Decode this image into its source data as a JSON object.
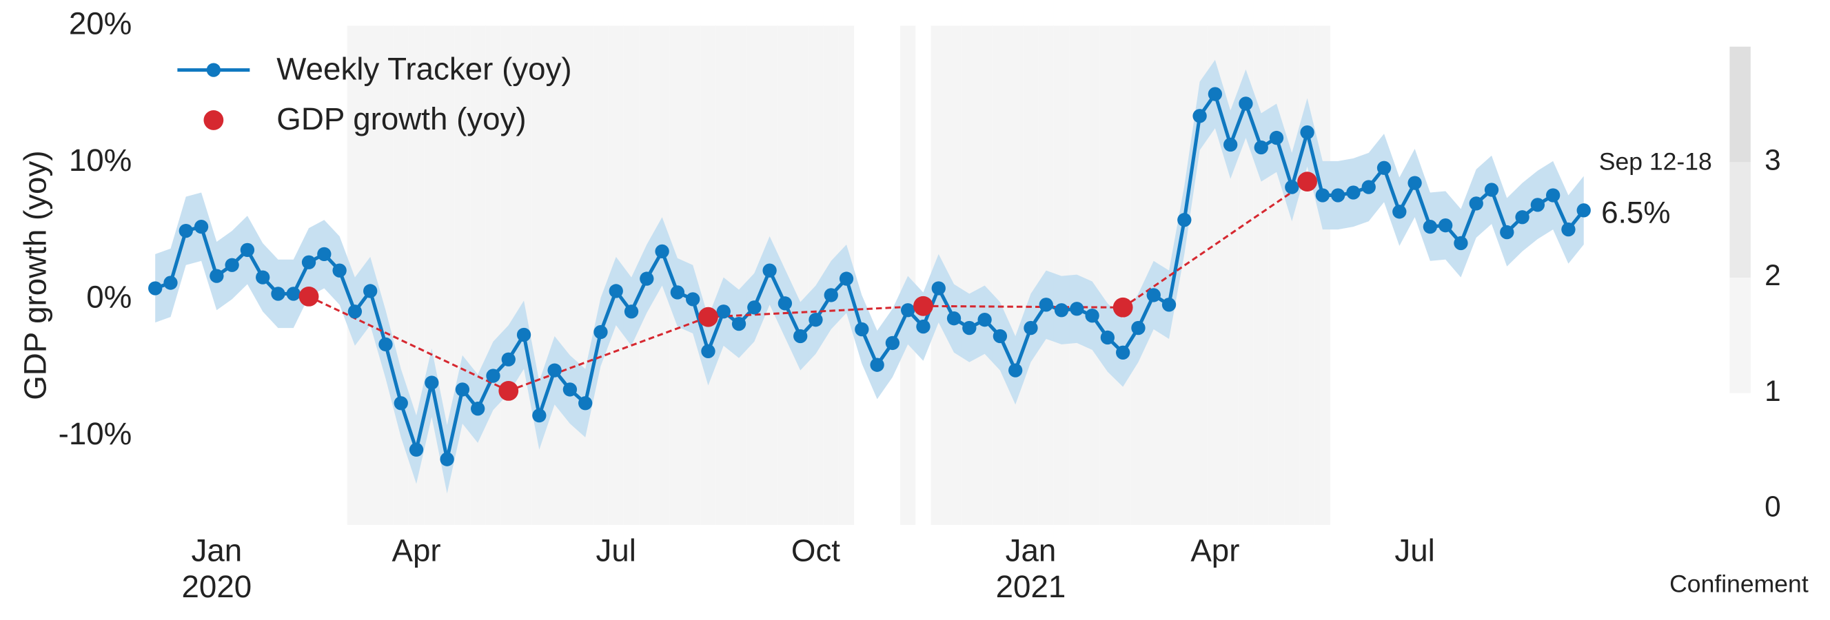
{
  "chart_data": {
    "type": "line",
    "y_label": "GDP growth (yoy)",
    "categories": [
      null,
      null,
      null,
      null,
      "Jan",
      null,
      null,
      null,
      null,
      null,
      null,
      null,
      null,
      null,
      null,
      null,
      null,
      "Apr",
      null,
      null,
      null,
      null,
      null,
      null,
      null,
      null,
      null,
      null,
      null,
      null,
      "Jul",
      null,
      null,
      null,
      null,
      null,
      null,
      null,
      null,
      null,
      null,
      null,
      null,
      "Oct",
      null,
      null,
      null,
      null,
      null,
      null,
      null,
      null,
      null,
      null,
      null,
      null,
      null,
      "Jan",
      null,
      null,
      null,
      null,
      null,
      null,
      null,
      null,
      null,
      null,
      null,
      "Apr",
      null,
      null,
      null,
      null,
      null,
      null,
      null,
      null,
      null,
      null,
      null,
      null,
      "Jul",
      null,
      null,
      null,
      null,
      null,
      null,
      null,
      null,
      null,
      null,
      null
    ],
    "x_sublabels": [
      null,
      null,
      null,
      null,
      "2020",
      null,
      null,
      null,
      null,
      null,
      null,
      null,
      null,
      null,
      null,
      null,
      null,
      null,
      null,
      null,
      null,
      null,
      null,
      null,
      null,
      null,
      null,
      null,
      null,
      null,
      null,
      null,
      null,
      null,
      null,
      null,
      null,
      null,
      null,
      null,
      null,
      null,
      null,
      null,
      null,
      null,
      null,
      null,
      null,
      null,
      null,
      null,
      null,
      null,
      null,
      null,
      null,
      "2021",
      null,
      null,
      null,
      null,
      null,
      null,
      null,
      null,
      null,
      null,
      null,
      null,
      null,
      null,
      null,
      null,
      null,
      null,
      null,
      null,
      null,
      null,
      null,
      null,
      null,
      null,
      null,
      null,
      null,
      null,
      null,
      null,
      null,
      null,
      null,
      null
    ],
    "series": [
      {
        "name": "Weekly Tracker (yoy)",
        "color": "#0f78c0",
        "band_color": "#c7e0f1",
        "error": 2.5,
        "values": [
          0.8,
          1.2,
          5.0,
          5.3,
          1.7,
          2.5,
          3.6,
          1.6,
          0.4,
          0.4,
          2.7,
          3.3,
          2.1,
          -0.9,
          0.6,
          -3.3,
          -7.6,
          -11.0,
          -6.1,
          -11.7,
          -6.6,
          -8.0,
          -5.6,
          -4.4,
          -2.6,
          -8.5,
          -5.2,
          -6.6,
          -7.6,
          -2.4,
          0.6,
          -0.9,
          1.5,
          3.5,
          0.5,
          0.0,
          -3.8,
          -0.9,
          -1.8,
          -0.6,
          2.1,
          -0.3,
          -2.7,
          -1.5,
          0.3,
          1.5,
          -2.2,
          -4.8,
          -3.2,
          -0.8,
          -2.0,
          0.8,
          -1.4,
          -2.1,
          -1.5,
          -2.7,
          -5.2,
          -2.1,
          -0.4,
          -0.8,
          -0.7,
          -1.2,
          -2.8,
          -3.9,
          -2.1,
          0.3,
          -0.4,
          5.8,
          13.4,
          15.0,
          11.3,
          14.3,
          11.1,
          11.8,
          8.2,
          12.2,
          7.6,
          7.6,
          7.8,
          8.2,
          9.6,
          6.4,
          8.5,
          5.3,
          5.4,
          4.1,
          7.0,
          8.0,
          4.9,
          6.0,
          6.9,
          7.6,
          5.1,
          6.5
        ],
        "value_labels": [
          null,
          null,
          null,
          null,
          null,
          null,
          null,
          null,
          null,
          null,
          null,
          null,
          null,
          null,
          null,
          null,
          null,
          null,
          null,
          null,
          null,
          null,
          null,
          null,
          null,
          null,
          null,
          null,
          null,
          null,
          null,
          null,
          null,
          null,
          null,
          null,
          null,
          null,
          null,
          null,
          null,
          null,
          null,
          null,
          null,
          null,
          null,
          null,
          null,
          null,
          null,
          null,
          null,
          null,
          null,
          null,
          null,
          null,
          null,
          null,
          null,
          null,
          null,
          null,
          null,
          null,
          null,
          null,
          null,
          null,
          null,
          null,
          null,
          null,
          null,
          null,
          null,
          null,
          null,
          null,
          null,
          null,
          null,
          null,
          null,
          null,
          null,
          null,
          null,
          null,
          null,
          null,
          null,
          "6.5%"
        ]
      },
      {
        "name": "GDP growth (yoy)",
        "color": "#d62830",
        "values": [
          null,
          null,
          null,
          null,
          null,
          null,
          null,
          null,
          null,
          null,
          0.2,
          null,
          null,
          null,
          null,
          null,
          null,
          null,
          null,
          null,
          null,
          null,
          null,
          -6.7,
          null,
          null,
          null,
          null,
          null,
          null,
          null,
          null,
          null,
          null,
          null,
          null,
          -1.3,
          null,
          null,
          null,
          null,
          null,
          null,
          null,
          null,
          null,
          null,
          null,
          null,
          null,
          -0.5,
          null,
          null,
          null,
          null,
          null,
          null,
          null,
          null,
          null,
          null,
          null,
          null,
          -0.6,
          null,
          null,
          null,
          null,
          null,
          null,
          null,
          null,
          null,
          null,
          null,
          8.6,
          null,
          null,
          null,
          null,
          null,
          null,
          null,
          null,
          null,
          null,
          null,
          null,
          null,
          null,
          null,
          null,
          null,
          null
        ]
      }
    ],
    "last_label": "Sep 12-18",
    "ylim": [
      -16.5,
      20
    ],
    "yticks": [
      {
        "value": -10,
        "label": "-10%"
      },
      {
        "value": 0,
        "label": "0%"
      },
      {
        "value": 10,
        "label": "10%"
      },
      {
        "value": 20,
        "label": "20%"
      }
    ],
    "confinement": [
      0,
      0,
      0,
      0,
      0,
      0,
      0,
      0,
      0,
      0,
      0,
      0,
      0,
      1,
      1,
      1,
      1,
      1,
      1,
      1,
      1,
      1,
      1,
      1,
      1,
      1,
      1,
      1,
      1,
      1,
      1,
      1,
      1,
      1,
      1,
      1,
      1,
      1,
      1,
      1,
      1,
      1,
      1,
      1,
      1,
      1,
      0,
      0,
      0,
      1,
      0,
      1,
      1,
      1,
      1,
      1,
      1,
      1,
      1,
      1,
      1,
      1,
      1,
      1,
      1,
      1,
      1,
      1,
      1,
      1,
      1,
      1,
      1,
      1,
      1,
      1,
      1,
      0,
      0,
      0,
      0,
      0,
      0,
      0,
      0,
      0,
      0,
      0,
      0,
      0,
      0,
      0,
      0,
      0
    ],
    "confinement_label": "Confinement",
    "confinement_lim": [
      0,
      4
    ],
    "confinement_ticks": [
      0,
      1,
      2,
      3
    ],
    "confinement_colors": [
      "#ffffff",
      "#f5f5f5",
      "#eaeaea",
      "#dfdfdf"
    ],
    "legend": "upper left"
  }
}
